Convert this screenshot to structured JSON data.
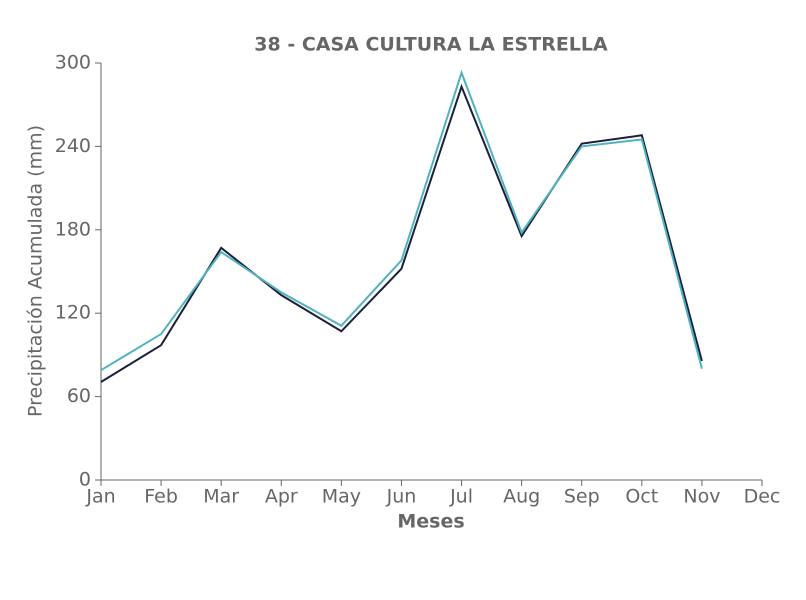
{
  "chart_data": {
    "type": "line",
    "title": "38 - CASA CULTURA LA ESTRELLA",
    "x_label": "Meses",
    "y_label": "Precipitación Acumulada (mm)",
    "categories": [
      "Jan",
      "Feb",
      "Mar",
      "Apr",
      "May",
      "Jun",
      "Jul",
      "Aug",
      "Sep",
      "Oct",
      "Nov",
      "Dec"
    ],
    "series": [
      {
        "color": "#1b1f3b",
        "values": [
          70.5,
          97,
          167,
          133,
          107,
          152,
          283,
          175.5,
          242,
          248,
          85.6,
          null
        ]
      },
      {
        "color": "#4fb3bf",
        "values": [
          79,
          105,
          164,
          135,
          111,
          158,
          293,
          178,
          240,
          245,
          80,
          null
        ]
      }
    ],
    "ylim": [
      0,
      300
    ],
    "yticks": [
      0,
      60,
      120,
      180,
      240,
      300
    ],
    "grid": false
  }
}
